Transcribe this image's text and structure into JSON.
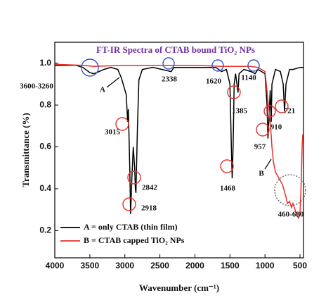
{
  "chart_data": {
    "type": "line",
    "title": "FT-IR Spectra of CTAB bound TiO₂ NPs",
    "x_label": "Wavenumber (cm⁻¹)",
    "y_label": "Transmittance (%)",
    "xlim": [
      4000,
      450
    ],
    "ylim": [
      0.07,
      1.1
    ],
    "xticks": [
      4000,
      3500,
      3000,
      2500,
      2000,
      1500,
      1000,
      500
    ],
    "yticks": [
      0.2,
      0.4,
      0.6,
      0.8,
      {
        "value": 1,
        "label": "1.0"
      }
    ],
    "legend": "lower left",
    "series": [
      {
        "name": "A = only CTAB (thin film)",
        "color": "#000000",
        "x": [
          4000,
          3700,
          3600,
          3500,
          3450,
          3400,
          3300,
          3200,
          3100,
          3050,
          2980,
          2960,
          2950,
          2930,
          2918,
          2900,
          2880,
          2860,
          2850,
          2842,
          2820,
          2800,
          2750,
          2600,
          2338,
          2300,
          2000,
          1700,
          1620,
          1550,
          1500,
          1480,
          1468,
          1455,
          1440,
          1420,
          1385,
          1370,
          1300,
          1200,
          1140,
          1100,
          1000,
          970,
          957,
          940,
          925,
          910,
          900,
          850,
          780,
          740,
          721,
          700,
          650,
          600,
          500,
          450
        ],
        "values": [
          0.99,
          0.99,
          0.98,
          0.955,
          0.95,
          0.955,
          0.97,
          0.98,
          0.97,
          0.93,
          0.85,
          0.72,
          0.78,
          0.5,
          0.28,
          0.45,
          0.6,
          0.5,
          0.4,
          0.38,
          0.7,
          0.92,
          0.97,
          0.98,
          0.96,
          0.98,
          0.98,
          0.98,
          0.96,
          0.97,
          0.9,
          0.6,
          0.45,
          0.6,
          0.9,
          0.95,
          0.86,
          0.95,
          0.97,
          0.96,
          0.95,
          0.97,
          0.95,
          0.8,
          0.64,
          0.75,
          0.87,
          0.72,
          0.9,
          0.97,
          0.96,
          0.9,
          0.77,
          0.9,
          0.97,
          0.97,
          0.98,
          0.98
        ]
      },
      {
        "name": "B = CTAB capped TiO₂ NPs",
        "color": "#e8312a",
        "x": [
          4000,
          3600,
          3450,
          3000,
          2400,
          2000,
          1600,
          1200,
          1100,
          1000,
          950,
          920,
          900,
          880,
          850,
          800,
          750,
          700,
          680,
          650,
          620,
          600,
          560,
          540,
          520,
          500,
          480,
          470,
          460
        ],
        "values": [
          0.995,
          0.99,
          0.985,
          0.99,
          0.99,
          0.99,
          0.985,
          0.985,
          0.98,
          0.96,
          0.8,
          0.7,
          0.6,
          0.53,
          0.48,
          0.45,
          0.42,
          0.36,
          0.33,
          0.34,
          0.31,
          0.33,
          0.29,
          0.27,
          0.26,
          0.28,
          0.45,
          0.6,
          0.66
        ]
      }
    ],
    "annotations": [
      "3600-3260",
      "A",
      "3015",
      "2918",
      "2842",
      "2338",
      "1620",
      "1140",
      "1385",
      "1468",
      "957",
      "910",
      "721",
      "B",
      "460-680"
    ]
  }
}
